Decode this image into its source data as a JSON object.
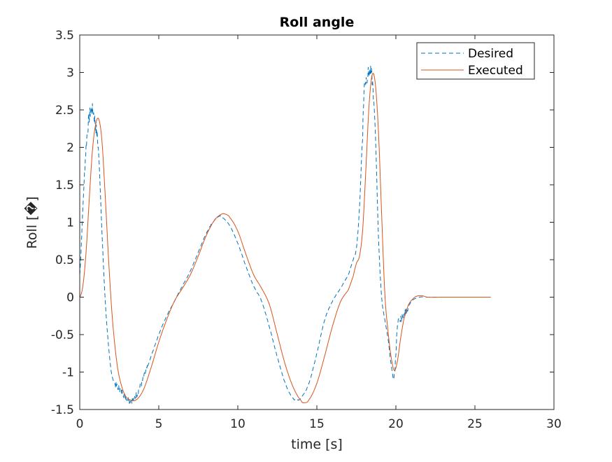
{
  "chart_data": {
    "type": "line",
    "title": "Roll angle",
    "xlabel": "time [s]",
    "ylabel": "Roll [�]",
    "xlim": [
      0,
      30
    ],
    "ylim": [
      -1.5,
      3.5
    ],
    "xticks": [
      0,
      5,
      10,
      15,
      20,
      25,
      30
    ],
    "yticks": [
      -1.5,
      -1,
      -0.5,
      0,
      0.5,
      1,
      1.5,
      2,
      2.5,
      3,
      3.5
    ],
    "xtick_labels": [
      "0",
      "5",
      "10",
      "15",
      "20",
      "25",
      "30"
    ],
    "ytick_labels": [
      "-1.5",
      "-1",
      "-0.5",
      "0",
      "0.5",
      "1",
      "1.5",
      "2",
      "2.5",
      "3",
      "3.5"
    ],
    "grid": false,
    "legend_position": "top-right",
    "series": [
      {
        "name": "Desired",
        "color": "#0072BD",
        "style": "dashed",
        "noisy": true,
        "x": [
          0,
          0.2,
          0.4,
          0.6,
          0.8,
          1.0,
          1.2,
          1.4,
          1.6,
          1.8,
          2.0,
          2.2,
          2.4,
          2.6,
          2.8,
          3.0,
          3.2,
          3.5,
          4.0,
          4.5,
          5.0,
          5.5,
          6.0,
          6.5,
          7.0,
          7.5,
          8.0,
          8.5,
          8.8,
          9.0,
          9.5,
          10.0,
          10.5,
          11.0,
          11.5,
          12.0,
          12.5,
          13.0,
          13.5,
          13.8,
          14.0,
          14.5,
          15.0,
          15.5,
          16.0,
          16.5,
          17.0,
          17.3,
          17.5,
          17.7,
          17.9,
          18.0,
          18.1,
          18.3,
          18.5,
          18.7,
          18.9,
          19.1,
          19.3,
          19.5,
          19.7,
          19.9,
          20.1,
          20.3,
          20.6,
          21.0,
          21.5,
          22.0,
          23.0,
          24.0,
          25.0,
          26.0
        ],
        "y": [
          0.3,
          1.2,
          2.0,
          2.4,
          2.5,
          2.3,
          1.9,
          0.9,
          0.0,
          -0.6,
          -1.0,
          -1.15,
          -1.2,
          -1.25,
          -1.3,
          -1.35,
          -1.38,
          -1.33,
          -1.1,
          -0.8,
          -0.5,
          -0.25,
          -0.05,
          0.15,
          0.35,
          0.6,
          0.85,
          1.02,
          1.08,
          1.07,
          0.95,
          0.72,
          0.42,
          0.15,
          -0.05,
          -0.4,
          -0.8,
          -1.15,
          -1.35,
          -1.37,
          -1.34,
          -1.15,
          -0.75,
          -0.3,
          -0.05,
          0.12,
          0.3,
          0.5,
          0.65,
          1.2,
          2.2,
          2.8,
          2.9,
          3.0,
          2.9,
          2.2,
          0.8,
          0.0,
          -0.3,
          -0.55,
          -0.9,
          -1.05,
          -0.4,
          -0.3,
          -0.2,
          -0.05,
          0.0,
          0.0,
          0.0,
          0.0,
          0.0,
          0.0
        ]
      },
      {
        "name": "Executed",
        "color": "#D95319",
        "style": "solid",
        "noisy": false,
        "x": [
          0,
          0.2,
          0.4,
          0.6,
          0.8,
          1.0,
          1.2,
          1.4,
          1.6,
          1.8,
          2.0,
          2.2,
          2.4,
          2.6,
          2.8,
          3.0,
          3.5,
          4.0,
          4.5,
          5.0,
          5.5,
          6.0,
          6.5,
          7.0,
          7.5,
          8.0,
          8.5,
          9.0,
          9.3,
          9.5,
          10.0,
          10.5,
          11.0,
          11.5,
          12.0,
          12.5,
          13.0,
          13.5,
          14.0,
          14.2,
          14.5,
          15.0,
          15.5,
          16.0,
          16.5,
          17.0,
          17.3,
          17.5,
          17.7,
          17.9,
          18.1,
          18.3,
          18.5,
          18.7,
          18.9,
          19.1,
          19.3,
          19.5,
          19.7,
          19.9,
          20.1,
          20.3,
          20.5,
          20.8,
          21.2,
          21.6,
          22.0,
          23.0,
          24.0,
          25.0,
          26.0
        ],
        "y": [
          0.0,
          0.15,
          0.6,
          1.3,
          1.95,
          2.3,
          2.38,
          2.1,
          1.4,
          0.6,
          -0.1,
          -0.6,
          -0.95,
          -1.15,
          -1.28,
          -1.35,
          -1.38,
          -1.25,
          -0.95,
          -0.6,
          -0.3,
          -0.05,
          0.12,
          0.3,
          0.55,
          0.82,
          1.02,
          1.11,
          1.1,
          1.06,
          0.88,
          0.58,
          0.3,
          0.12,
          -0.1,
          -0.5,
          -0.9,
          -1.2,
          -1.38,
          -1.41,
          -1.37,
          -1.15,
          -0.78,
          -0.38,
          -0.06,
          0.1,
          0.28,
          0.45,
          0.55,
          0.9,
          1.7,
          2.55,
          2.97,
          2.85,
          2.2,
          1.1,
          0.05,
          -0.45,
          -0.8,
          -0.98,
          -0.85,
          -0.55,
          -0.3,
          -0.1,
          0.0,
          0.02,
          0.0,
          0.0,
          0.0,
          0.0,
          0.0
        ]
      }
    ]
  }
}
